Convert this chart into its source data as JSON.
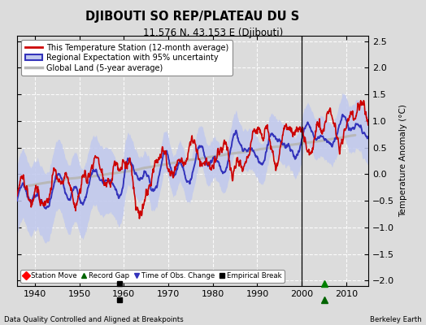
{
  "title": "DJIBOUTI SO REP/PLATEAU DU S",
  "subtitle": "11.576 N, 43.153 E (Djibouti)",
  "ylabel": "Temperature Anomaly (°C)",
  "xlabel_left": "Data Quality Controlled and Aligned at Breakpoints",
  "xlabel_right": "Berkeley Earth",
  "xlim": [
    1936,
    2015
  ],
  "ylim": [
    -2.1,
    2.6
  ],
  "yticks": [
    -2,
    -1.5,
    -1,
    -0.5,
    0,
    0.5,
    1,
    1.5,
    2,
    2.5
  ],
  "xticks": [
    1940,
    1950,
    1960,
    1970,
    1980,
    1990,
    2000,
    2010
  ],
  "empirical_break_x": 1959,
  "record_gap_x": 2005,
  "vertical_line_x": 2000,
  "bg_color": "#dcdcdc",
  "regional_color": "#3333bb",
  "regional_fill_color": "#c0c8ee",
  "station_color": "#cc0000",
  "global_color": "#b8b8b8",
  "legend_items": [
    "This Temperature Station (12-month average)",
    "Regional Expectation with 95% uncertainty",
    "Global Land (5-year average)"
  ],
  "bottom_legend_items": [
    "Station Move",
    "Record Gap",
    "Time of Obs. Change",
    "Empirical Break"
  ]
}
